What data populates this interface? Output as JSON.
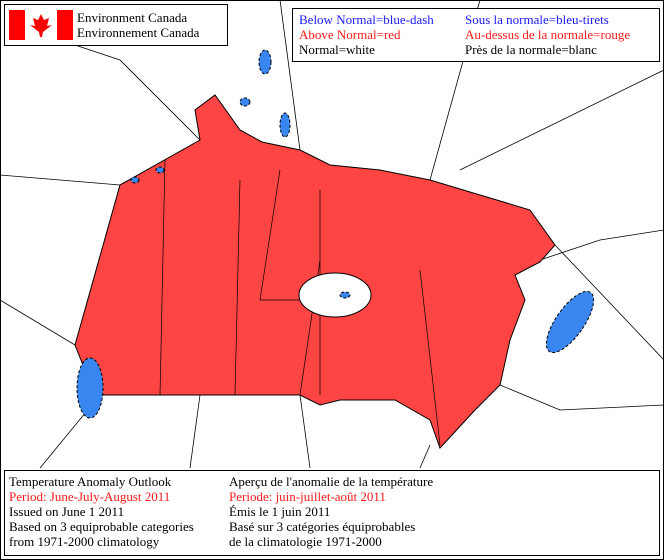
{
  "header": {
    "title_en": "Environment Canada",
    "title_fr": "Environnement Canada"
  },
  "legend": {
    "en": [
      "Below Normal=blue-dash",
      "Above Normal=red",
      "Normal=white"
    ],
    "fr": [
      "Sous la normale=bleu-tirets",
      "Au-dessus de la normale=rouge",
      "Près de la normale=blanc"
    ]
  },
  "info": {
    "en": [
      "Temperature Anomaly Outlook",
      "Period: June-July-August 2011",
      "Issued on June 1 2011",
      "Based on 3 equiprobable categories",
      "from 1971-2000 climatology"
    ],
    "fr": [
      "Aperçu de l'anomalie de la température",
      "Periode: juin-juillet-août 2011",
      "Émis le 1 juin 2011",
      "Basé sur 3 catégories équiprobables",
      "de la climatologie 1971-2000"
    ]
  }
}
